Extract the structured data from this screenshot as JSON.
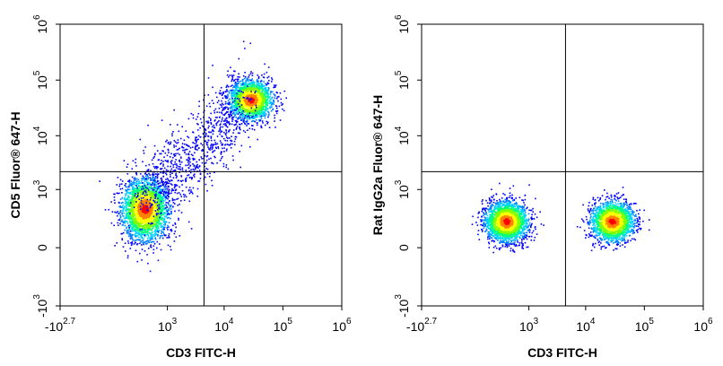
{
  "colors": {
    "background": "#ffffff",
    "axis": "#000000",
    "density_scale": [
      "#0000ff",
      "#0080ff",
      "#00d0ff",
      "#00ff80",
      "#80ff00",
      "#ffff00",
      "#ff8000",
      "#ff0000"
    ]
  },
  "chart_data": [
    {
      "type": "scatter",
      "title": "",
      "xlabel": "CD3 FITC-H",
      "ylabel": "CD5 Fluor® 647-H",
      "xscale": "biexponential",
      "yscale": "biexponential",
      "xlim": [
        -501,
        1000000
      ],
      "ylim": [
        -1000,
        1000000
      ],
      "x_ticks": [
        {
          "base": "-10",
          "exp": "2.7"
        },
        {
          "base": "10",
          "exp": "3"
        },
        {
          "base": "10",
          "exp": "4"
        },
        {
          "base": "10",
          "exp": "5"
        },
        {
          "base": "10",
          "exp": "6"
        }
      ],
      "y_ticks": [
        {
          "base": "-10",
          "exp": "3"
        },
        {
          "base": "0",
          "exp": ""
        },
        {
          "base": "10",
          "exp": "3"
        },
        {
          "base": "10",
          "exp": "4"
        },
        {
          "base": "10",
          "exp": "5"
        },
        {
          "base": "10",
          "exp": "6"
        }
      ],
      "quadrant_gate": {
        "x": 4500,
        "y": 2200
      },
      "populations": [
        {
          "name": "CD3- CD5-",
          "center": [
            350,
            400
          ],
          "spread": "large",
          "n": 2600
        },
        {
          "name": "CD3+ CD5+",
          "center": [
            28000,
            45000
          ],
          "spread": "medium",
          "n": 2000
        },
        {
          "name": "transition",
          "center": [
            3000,
            4000
          ],
          "spread": "diffuse",
          "n": 900
        }
      ]
    },
    {
      "type": "scatter",
      "title": "",
      "xlabel": "CD3 FITC-H",
      "ylabel": "Rat IgG2a Fluor® 647-H",
      "xscale": "biexponential",
      "yscale": "biexponential",
      "xlim": [
        -501,
        1000000
      ],
      "ylim": [
        -1000,
        1000000
      ],
      "x_ticks": [
        {
          "base": "-10",
          "exp": "2.7"
        },
        {
          "base": "10",
          "exp": "3"
        },
        {
          "base": "10",
          "exp": "4"
        },
        {
          "base": "10",
          "exp": "5"
        },
        {
          "base": "10",
          "exp": "6"
        }
      ],
      "y_ticks": [
        {
          "base": "-10",
          "exp": "3"
        },
        {
          "base": "0",
          "exp": ""
        },
        {
          "base": "10",
          "exp": "3"
        },
        {
          "base": "10",
          "exp": "4"
        },
        {
          "base": "10",
          "exp": "5"
        },
        {
          "base": "10",
          "exp": "6"
        }
      ],
      "quadrant_gate": {
        "x": 4500,
        "y": 2200
      },
      "populations": [
        {
          "name": "CD3- isotype",
          "center": [
            350,
            200
          ],
          "spread": "medium",
          "n": 2400
        },
        {
          "name": "CD3+ isotype",
          "center": [
            28000,
            200
          ],
          "spread": "medium",
          "n": 2000
        }
      ]
    }
  ]
}
